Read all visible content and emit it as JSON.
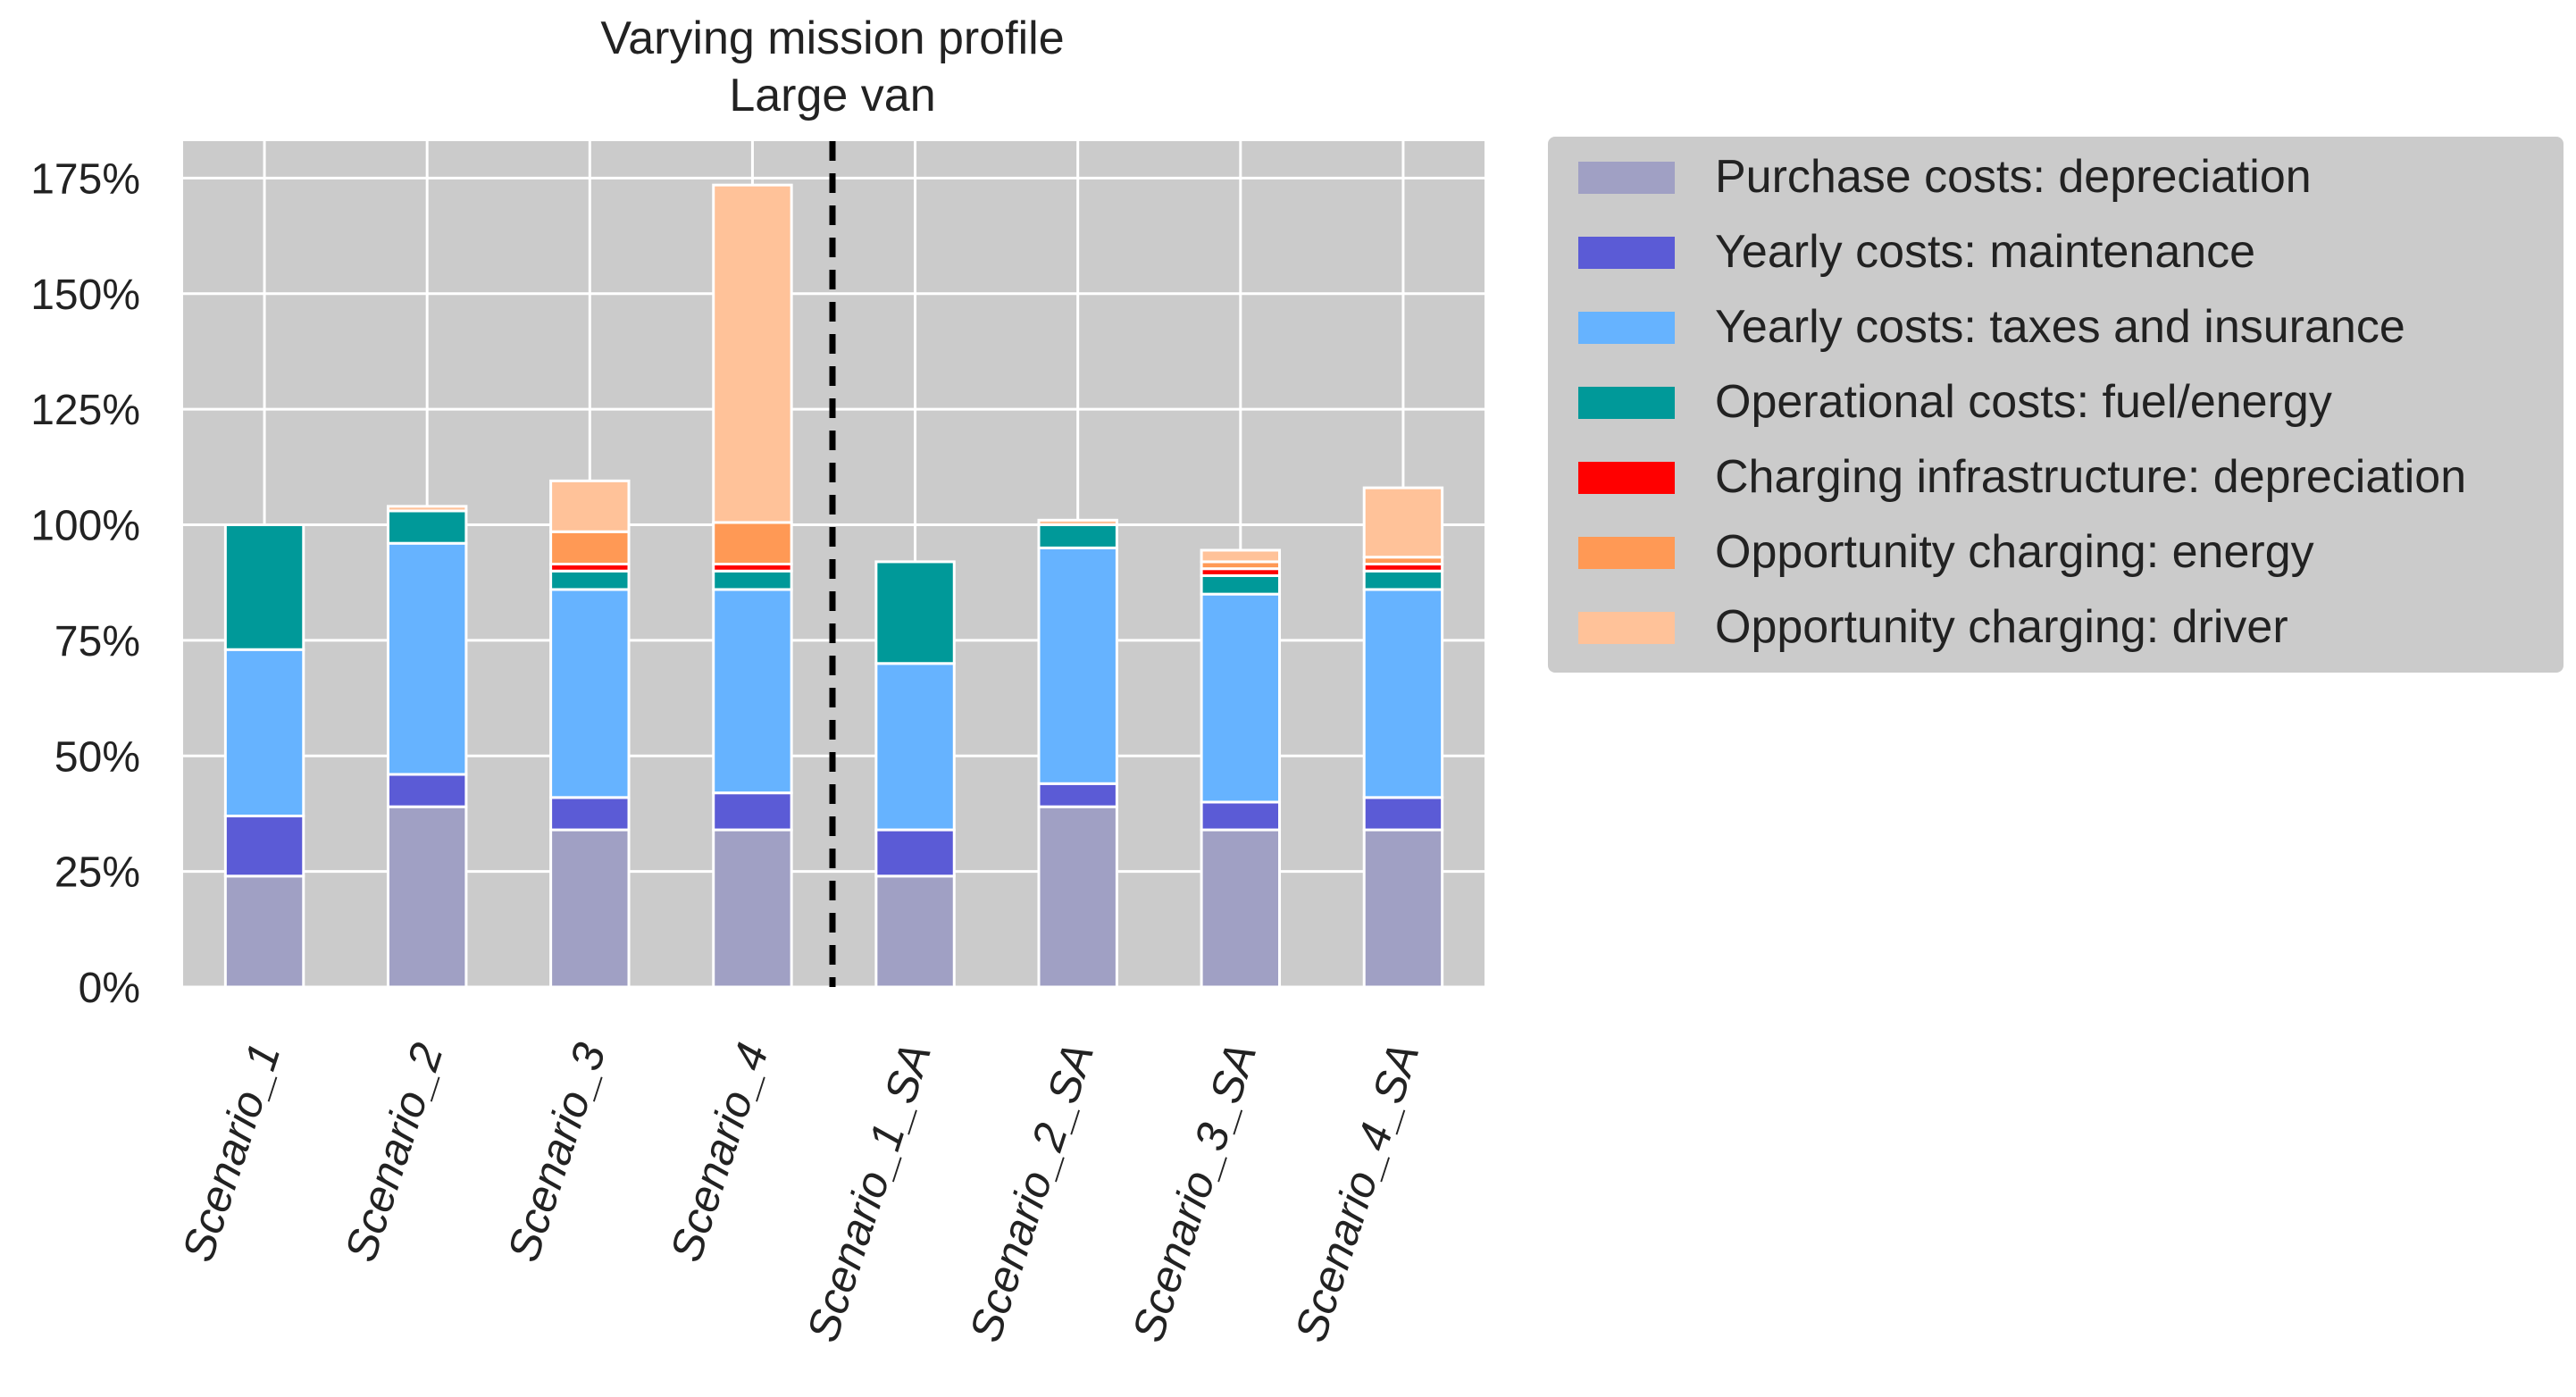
{
  "chart_data": {
    "type": "bar",
    "stacked": true,
    "title": [
      "Varying mission profile",
      "Large van"
    ],
    "xlabel": "",
    "ylabel": "",
    "ylim": [
      0,
      183
    ],
    "yticks": [
      0,
      25,
      50,
      75,
      100,
      125,
      150,
      175
    ],
    "ytick_labels": [
      "0%",
      "25%",
      "50%",
      "75%",
      "100%",
      "125%",
      "150%",
      "175%"
    ],
    "grid": true,
    "legend_position": "right",
    "separator_after_index": 3,
    "categories": [
      "Scenario_1",
      "Scenario_2",
      "Scenario_3",
      "Scenario_4",
      "Scenario_1_SA",
      "Scenario_2_SA",
      "Scenario_3_SA",
      "Scenario_4_SA"
    ],
    "series": [
      {
        "name": "Purchase costs: depreciation",
        "color": "#a0a0c4",
        "values": [
          24,
          39,
          34,
          34,
          24,
          39,
          34,
          34
        ]
      },
      {
        "name": "Yearly costs: maintenance",
        "color": "#5b5bd6",
        "values": [
          13,
          7,
          7,
          8,
          10,
          5,
          6,
          7
        ]
      },
      {
        "name": "Yearly costs: taxes and insurance",
        "color": "#66b3ff",
        "values": [
          36,
          50,
          45,
          44,
          36,
          51,
          45,
          45
        ]
      },
      {
        "name": "Operational costs: fuel/energy",
        "color": "#009999",
        "values": [
          27,
          7,
          4,
          4,
          22,
          5,
          4,
          4
        ]
      },
      {
        "name": "Charging infrastructure: depreciation",
        "color": "#ff0000",
        "values": [
          0,
          0,
          1.5,
          1.5,
          0,
          0,
          1.5,
          1.5
        ]
      },
      {
        "name": "Opportunity charging: energy",
        "color": "#ff9955",
        "values": [
          0,
          0,
          7,
          9,
          0,
          0,
          1.5,
          1.5
        ]
      },
      {
        "name": "Opportunity charging: driver",
        "color": "#ffc299",
        "values": [
          0,
          1,
          11,
          73,
          0,
          1,
          2.5,
          15
        ]
      }
    ]
  }
}
